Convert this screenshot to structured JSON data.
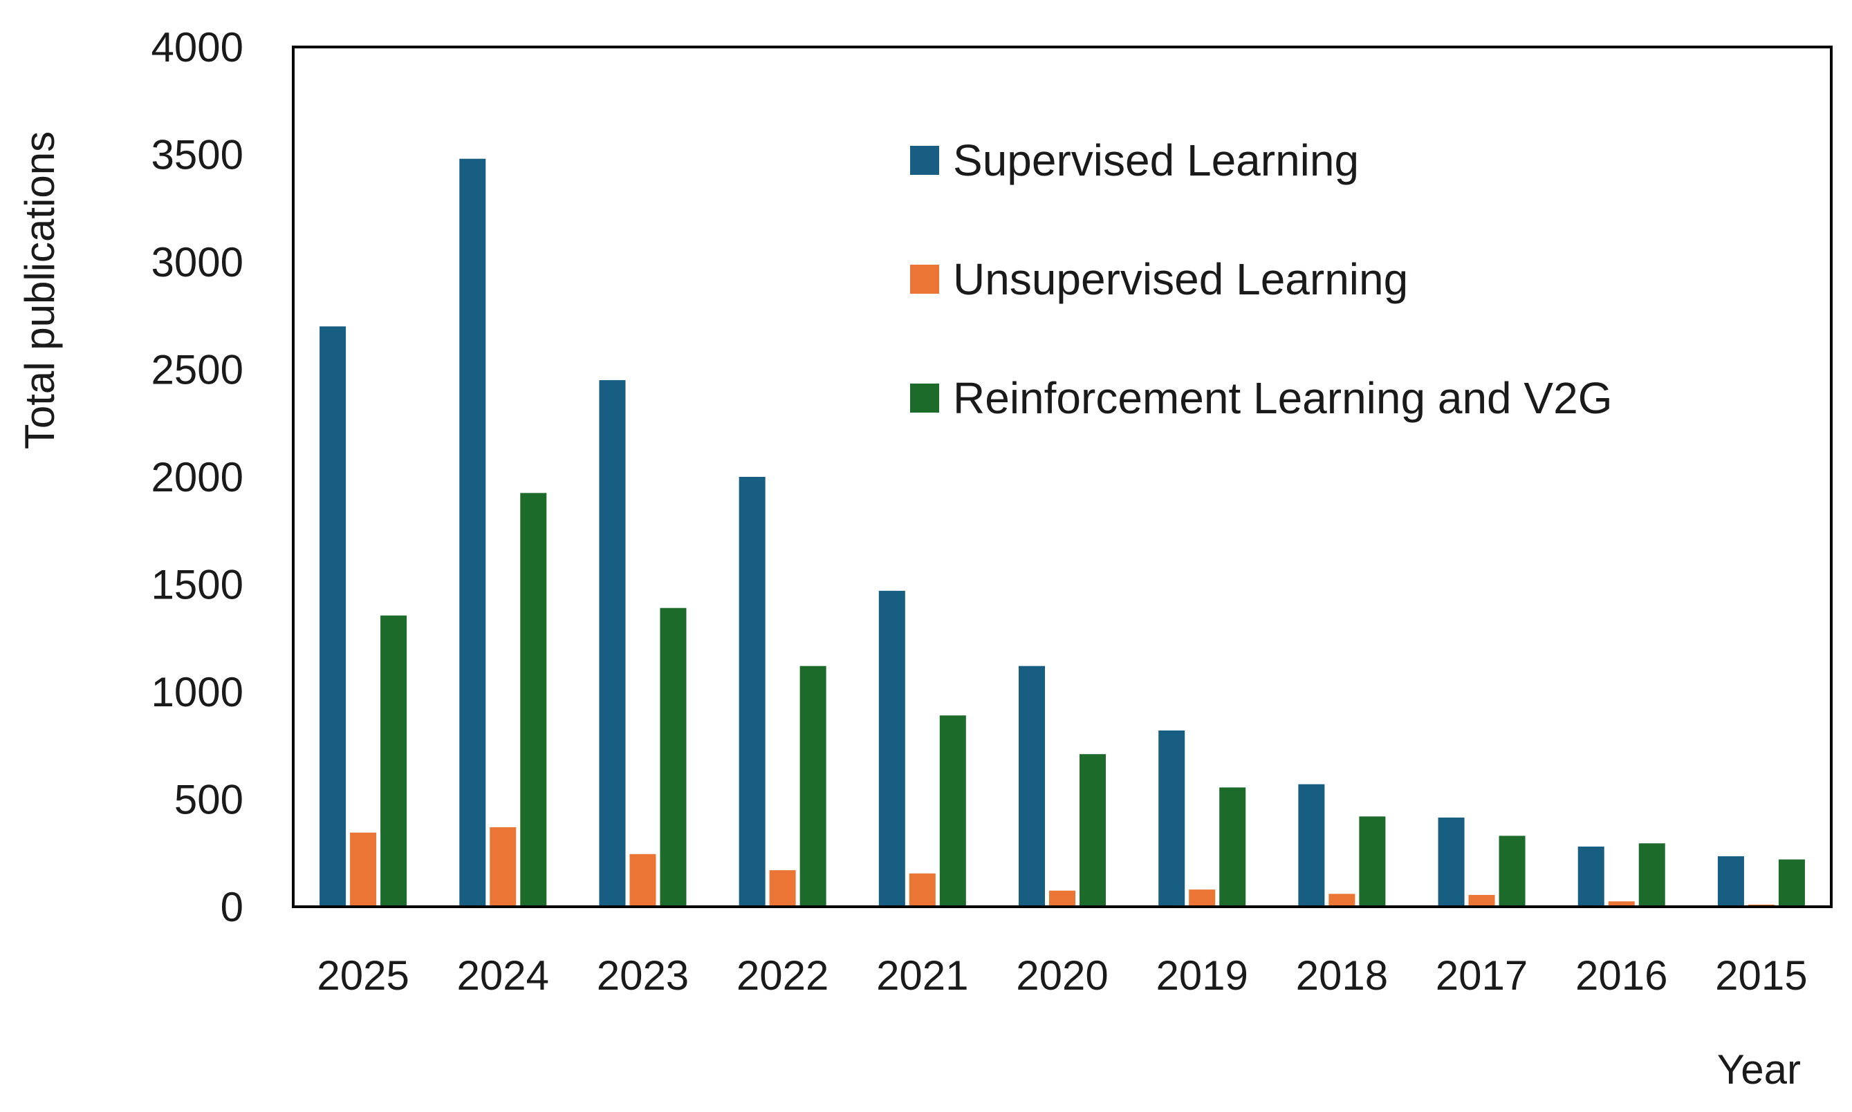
{
  "chart_data": {
    "type": "bar",
    "title": "",
    "xlabel": "Year",
    "ylabel": "Total publications",
    "ylim": [
      0,
      4000
    ],
    "yticks": [
      0,
      500,
      1000,
      1500,
      2000,
      2500,
      3000,
      3500,
      4000
    ],
    "grid": false,
    "legend_position": "top-right",
    "categories": [
      "2025",
      "2024",
      "2023",
      "2022",
      "2021",
      "2020",
      "2019",
      "2018",
      "2017",
      "2016",
      "2015"
    ],
    "series": [
      {
        "name": "Supervised Learning",
        "color": "#175e82",
        "values": [
          2700,
          3480,
          2450,
          2000,
          1470,
          1120,
          820,
          570,
          415,
          280,
          235
        ]
      },
      {
        "name": "Unsupervised Learning",
        "color": "#ea7535",
        "values": [
          345,
          370,
          245,
          170,
          155,
          75,
          80,
          60,
          55,
          25,
          10
        ]
      },
      {
        "name": "Reinforcement Learning and V2G",
        "color": "#1c6b2a",
        "values": [
          1355,
          1925,
          1390,
          1120,
          890,
          710,
          555,
          420,
          330,
          295,
          220
        ]
      }
    ]
  }
}
